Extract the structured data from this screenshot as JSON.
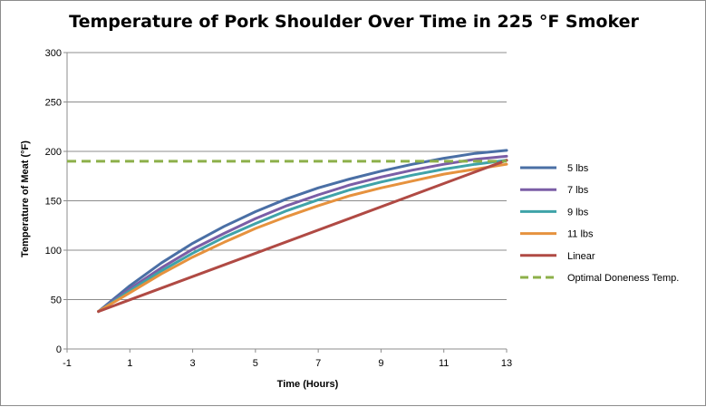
{
  "chart_data": {
    "type": "line",
    "title": "Temperature of Pork Shoulder Over Time in 225 °F Smoker",
    "xlabel": "Time (Hours)",
    "ylabel": "Temperature of Meat (°F)",
    "xlim": [
      -1,
      13
    ],
    "ylim": [
      0,
      300
    ],
    "xticks": [
      -1,
      1,
      3,
      5,
      7,
      9,
      11,
      13
    ],
    "yticks": [
      0,
      50,
      100,
      150,
      200,
      250,
      300
    ],
    "grid": "horizontal",
    "legend": "right",
    "series": [
      {
        "name": "5 lbs",
        "color": "#4a6fa5",
        "dash": false,
        "x": [
          0,
          1,
          2,
          3,
          4,
          5,
          6,
          7,
          8,
          9,
          10,
          11,
          12,
          13
        ],
        "y": [
          38,
          64,
          87,
          107,
          124,
          139,
          152,
          163,
          172,
          180,
          187,
          193,
          198,
          201
        ]
      },
      {
        "name": "7 lbs",
        "color": "#7b5ea6",
        "dash": false,
        "x": [
          0,
          1,
          2,
          3,
          4,
          5,
          6,
          7,
          8,
          9,
          10,
          11,
          12,
          13
        ],
        "y": [
          38,
          61,
          82,
          101,
          117,
          132,
          145,
          156,
          166,
          174,
          181,
          187,
          192,
          195
        ]
      },
      {
        "name": "9 lbs",
        "color": "#3fa3a8",
        "dash": false,
        "x": [
          0,
          1,
          2,
          3,
          4,
          5,
          6,
          7,
          8,
          9,
          10,
          11,
          12,
          13
        ],
        "y": [
          38,
          59,
          79,
          97,
          113,
          127,
          140,
          151,
          161,
          169,
          176,
          182,
          187,
          191
        ]
      },
      {
        "name": "11 lbs",
        "color": "#e6923e",
        "dash": false,
        "x": [
          0,
          1,
          2,
          3,
          4,
          5,
          6,
          7,
          8,
          9,
          10,
          11,
          12,
          13
        ],
        "y": [
          38,
          57,
          76,
          93,
          108,
          122,
          134,
          145,
          155,
          163,
          170,
          177,
          182,
          187
        ]
      },
      {
        "name": "Linear",
        "color": "#b04a44",
        "dash": false,
        "x": [
          0,
          13
        ],
        "y": [
          38,
          191
        ]
      },
      {
        "name": "Optimal Doneness Temp.",
        "color": "#8db04a",
        "dash": true,
        "x": [
          -1,
          13
        ],
        "y": [
          190,
          190
        ]
      }
    ]
  }
}
